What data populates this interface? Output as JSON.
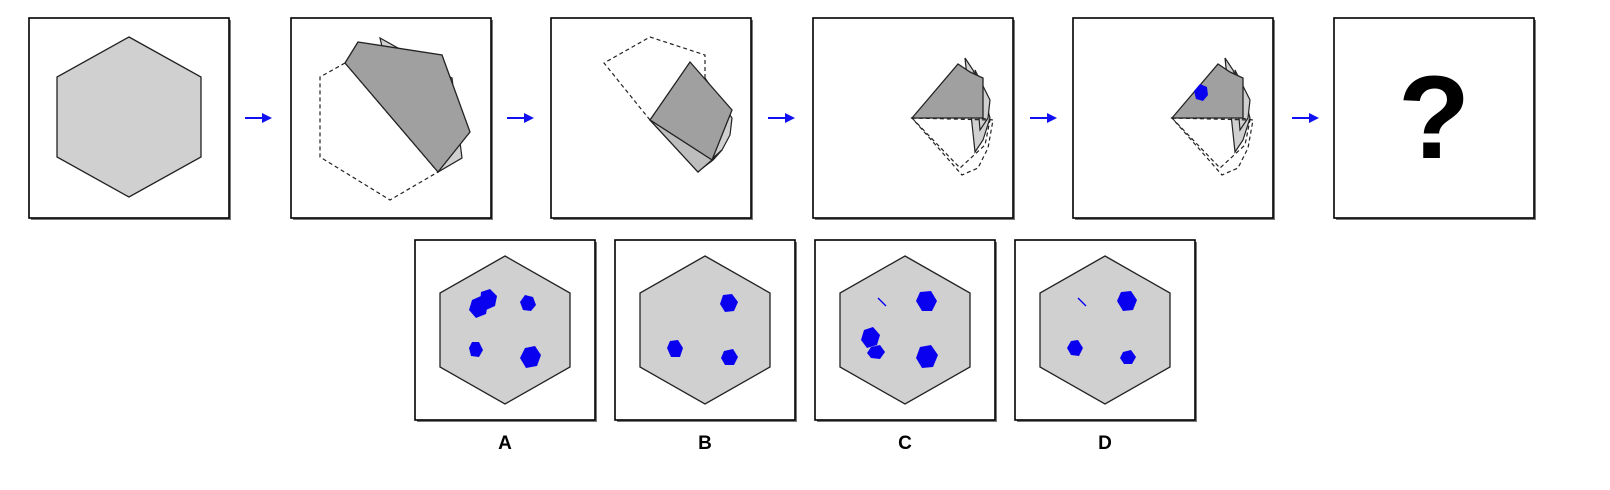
{
  "question_mark": "?",
  "step_icons": [
    "hexagon-paper-icon",
    "fold-1-icon",
    "fold-2-icon",
    "fold-3-icon",
    "punched-hole-icon",
    "question-icon"
  ],
  "arrow_icon": "arrow-right-icon",
  "options": [
    {
      "label": "A",
      "icon": "option-a-icon"
    },
    {
      "label": "B",
      "icon": "option-b-icon"
    },
    {
      "label": "C",
      "icon": "option-c-icon"
    },
    {
      "label": "D",
      "icon": "option-d-icon"
    }
  ],
  "colors": {
    "paper": "#d0d0d0",
    "folded": "#a0a0a0",
    "hole": "#0a00f0",
    "arrow": "#1010f0",
    "frame": "#000000"
  }
}
